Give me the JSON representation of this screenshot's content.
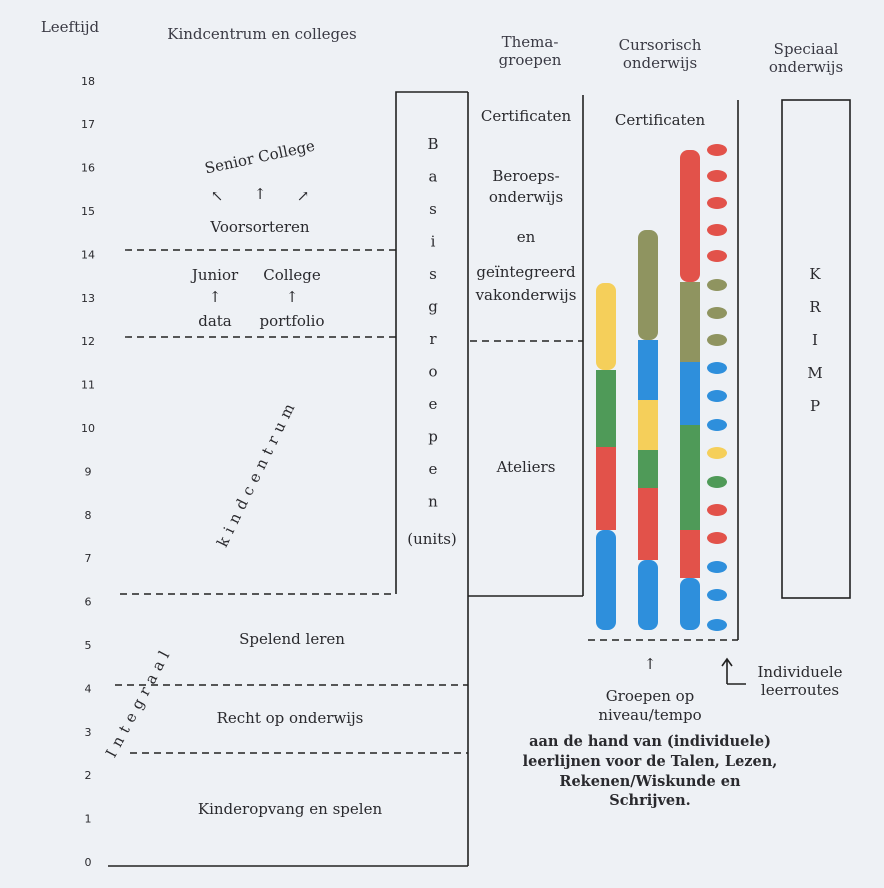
{
  "header": {
    "age_label": "Leeftijd",
    "column_1": "Kindcentrum en colleges",
    "column_2": [
      "Thema-",
      "groepen"
    ],
    "column_3": [
      "Cursorisch",
      "onderwijs"
    ],
    "column_4": [
      "Speciaal",
      "onderwijs"
    ]
  },
  "ages": [
    0,
    1,
    2,
    3,
    4,
    5,
    6,
    7,
    8,
    9,
    10,
    11,
    12,
    13,
    14,
    15,
    16,
    17,
    18
  ],
  "left_column": {
    "senior_college": "Senior College",
    "voorsorteren": "Voorsorteren",
    "junior": "Junior",
    "college": "College",
    "data": "data",
    "portfolio": "portfolio",
    "kindcentrum": "kindcentrum",
    "integraal": "Integraal",
    "spelend_leren": "Spelend leren",
    "recht_op_onderwijs": "Recht op onderwijs",
    "kinderopvang": "Kinderopvang en spelen"
  },
  "basisgroepen": {
    "label": "Basisgroepen",
    "note": "(units)"
  },
  "thema": {
    "certificaten": "Certificaten",
    "beroeps": [
      "Beroeps-",
      "onderwijs"
    ],
    "en": "en",
    "geintegreerd": [
      "geïntegreerd",
      "vakonderwijs"
    ],
    "ateliers": "Ateliers"
  },
  "cursorisch": {
    "certificaten": "Certificaten",
    "groepen": [
      "Groepen op",
      "niveau/tempo"
    ],
    "leerroutes": [
      "Individuele",
      "leerroutes"
    ],
    "note": [
      "aan de hand van (individuele)",
      "leerlijnen voor de Talen, Lezen,",
      "Rekenen/Wiskunde en",
      "Schrijven."
    ]
  },
  "speciaal": {
    "label": "KRIMP"
  }
}
